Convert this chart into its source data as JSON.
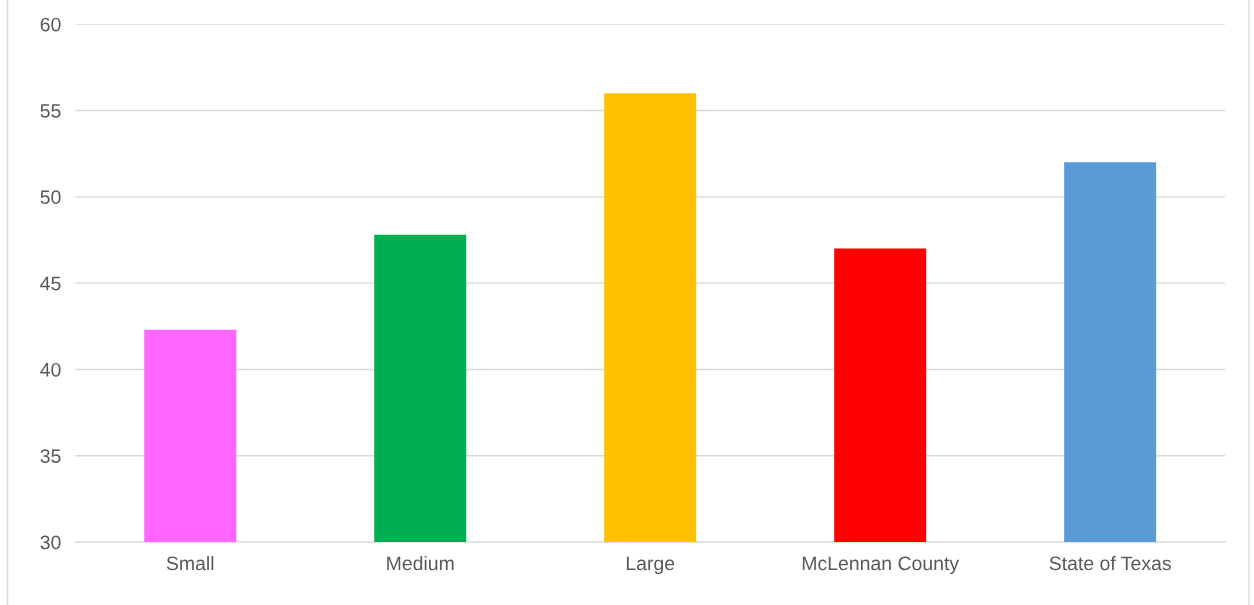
{
  "chart_data": {
    "type": "bar",
    "categories": [
      "Small",
      "Medium",
      "Large",
      "McLennan County",
      "State of Texas"
    ],
    "values": [
      42.3,
      47.8,
      56.0,
      47.0,
      52.0
    ],
    "colors": [
      "#ff66ff",
      "#00b050",
      "#ffc000",
      "#ff0000",
      "#5b9bd5"
    ],
    "ylim": [
      30,
      60
    ],
    "yticks": [
      30,
      35,
      40,
      45,
      50,
      55,
      60
    ],
    "grid": "y",
    "legend": false
  }
}
